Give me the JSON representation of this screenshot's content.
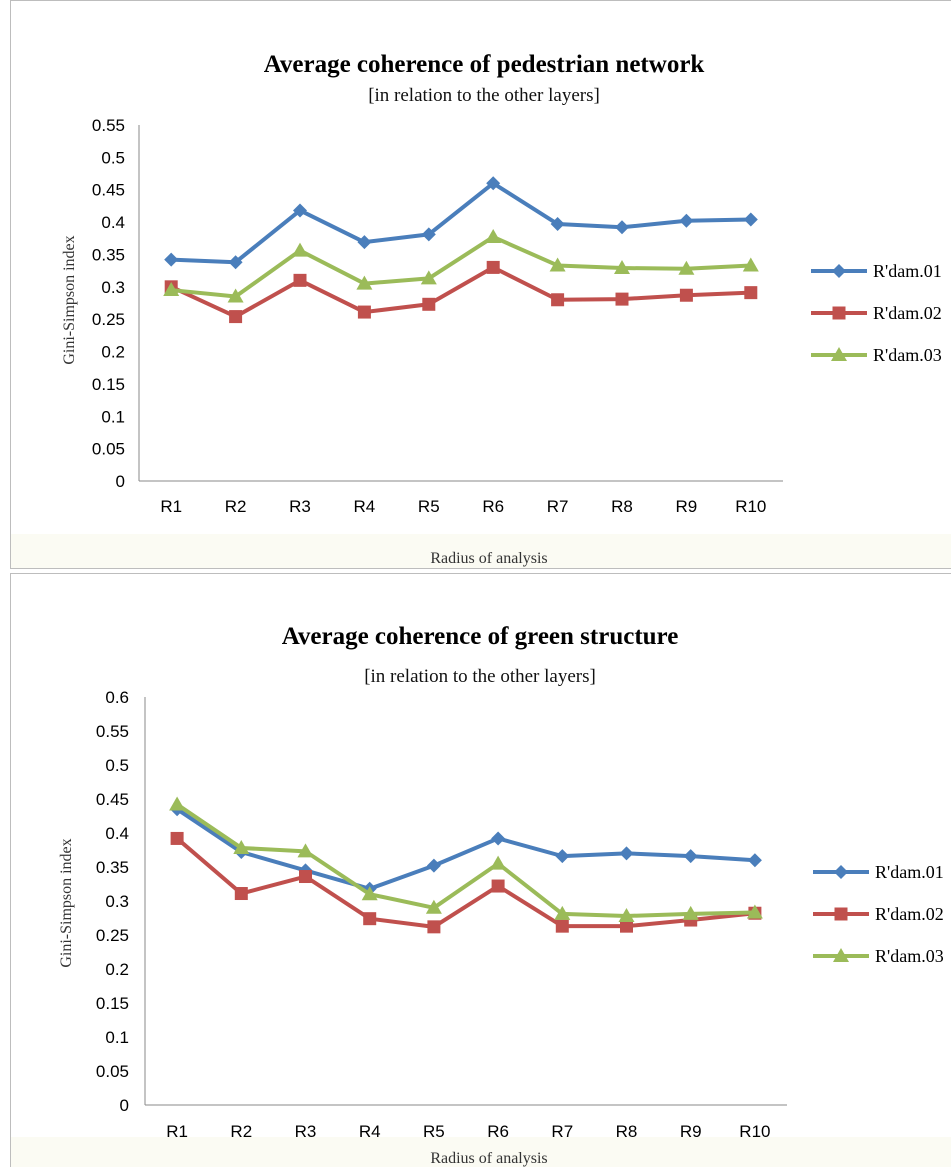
{
  "chart_data": [
    {
      "type": "line",
      "title": "Average coherence of pedestrian network",
      "subtitle": "[in relation to the other layers]",
      "xlabel": "Radius of analysis",
      "ylabel": "Gini-Simpson index",
      "categories": [
        "R1",
        "R2",
        "R3",
        "R4",
        "R5",
        "R6",
        "R7",
        "R8",
        "R9",
        "R10"
      ],
      "ylim": [
        0,
        0.55
      ],
      "yticks": [
        "0",
        "0.05",
        "0.1",
        "0.15",
        "0.2",
        "0.25",
        "0.3",
        "0.35",
        "0.4",
        "0.45",
        "0.5",
        "0.55"
      ],
      "grid": false,
      "legend": "right",
      "series": [
        {
          "name": "R'dam.01",
          "color": "#4a7ebb",
          "marker": "diamond",
          "values": [
            0.342,
            0.338,
            0.418,
            0.369,
            0.381,
            0.46,
            0.397,
            0.392,
            0.402,
            0.404
          ]
        },
        {
          "name": "R'dam.02",
          "color": "#c0504d",
          "marker": "square",
          "values": [
            0.3,
            0.254,
            0.31,
            0.261,
            0.273,
            0.33,
            0.28,
            0.281,
            0.287,
            0.291
          ]
        },
        {
          "name": "R'dam.03",
          "color": "#9bbb59",
          "marker": "triangle",
          "values": [
            0.295,
            0.285,
            0.356,
            0.305,
            0.313,
            0.377,
            0.333,
            0.329,
            0.328,
            0.333
          ]
        }
      ]
    },
    {
      "type": "line",
      "title": "Average coherence of green structure",
      "subtitle": "[in relation to the other layers]",
      "xlabel": "Radius of analysis",
      "ylabel": "Gini-Simpson index",
      "categories": [
        "R1",
        "R2",
        "R3",
        "R4",
        "R5",
        "R6",
        "R7",
        "R8",
        "R9",
        "R10"
      ],
      "ylim": [
        0,
        0.6
      ],
      "yticks": [
        "0",
        "0.05",
        "0.1",
        "0.15",
        "0.2",
        "0.25",
        "0.3",
        "0.35",
        "0.4",
        "0.45",
        "0.5",
        "0.55",
        "0.6"
      ],
      "grid": false,
      "legend": "right",
      "series": [
        {
          "name": "R'dam.01",
          "color": "#4a7ebb",
          "marker": "diamond",
          "values": [
            0.435,
            0.372,
            0.345,
            0.318,
            0.352,
            0.392,
            0.366,
            0.37,
            0.366,
            0.36
          ]
        },
        {
          "name": "R'dam.02",
          "color": "#c0504d",
          "marker": "square",
          "values": [
            0.392,
            0.311,
            0.336,
            0.274,
            0.262,
            0.322,
            0.263,
            0.263,
            0.272,
            0.282
          ]
        },
        {
          "name": "R'dam.03",
          "color": "#9bbb59",
          "marker": "triangle",
          "values": [
            0.442,
            0.378,
            0.373,
            0.31,
            0.29,
            0.355,
            0.281,
            0.278,
            0.281,
            0.283
          ]
        }
      ]
    }
  ]
}
